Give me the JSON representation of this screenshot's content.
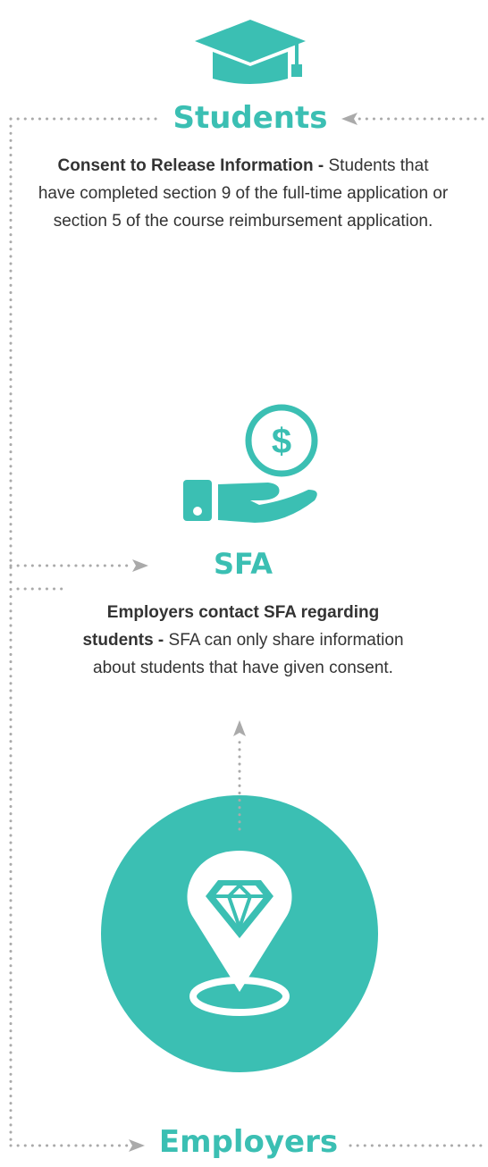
{
  "nodes": [
    {
      "title": "Students",
      "lead": "Consent to Release Information -",
      "text": "Students that have completed section 9 of the full-time application or section 5 of the course reimbursement application."
    },
    {
      "title": "SFA",
      "lead": "Employers contact SFA regarding students -",
      "text": "SFA can only share information about students that have given consent."
    },
    {
      "title": "Employers"
    }
  ]
}
